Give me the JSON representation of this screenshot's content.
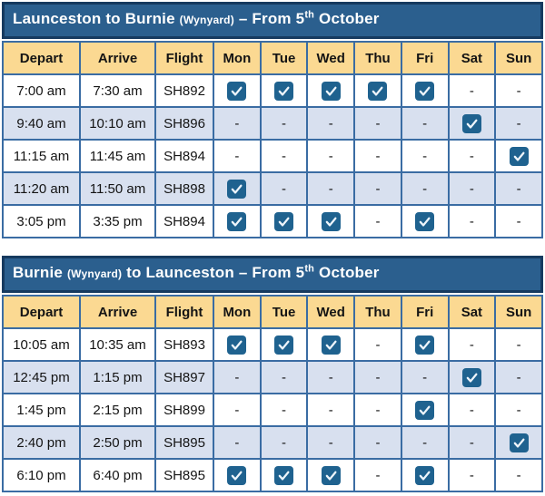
{
  "dash": "-",
  "icons": {
    "check": "check-icon"
  },
  "colors": {
    "title_bar_bg": "#2b5f8e",
    "title_bar_border": "#163a5f",
    "title_text": "#ffffff",
    "header_bg": "#fbd992",
    "grid_border": "#3a6ca3",
    "row_alt_bg": "#d8e0ef",
    "checkbox_bg": "#1f628f",
    "checkbox_mark": "#eef5fb"
  },
  "col_headers": [
    "Depart",
    "Arrive",
    "Flight"
  ],
  "day_headers": [
    "Mon",
    "Tue",
    "Wed",
    "Thu",
    "Fri",
    "Sat",
    "Sun"
  ],
  "tables": [
    {
      "title": {
        "before_paren": "Launceston to Burnie ",
        "paren": "(Wynyard)",
        "after_paren": " – From 5",
        "ordinal": "th",
        "after_ordinal": " October"
      },
      "rows": [
        {
          "depart": "7:00 am",
          "arrive": "7:30 am",
          "flight": "SH892",
          "days": [
            true,
            true,
            true,
            true,
            true,
            false,
            false
          ]
        },
        {
          "depart": "9:40 am",
          "arrive": "10:10 am",
          "flight": "SH896",
          "days": [
            false,
            false,
            false,
            false,
            false,
            true,
            false
          ]
        },
        {
          "depart": "11:15 am",
          "arrive": "11:45 am",
          "flight": "SH894",
          "days": [
            false,
            false,
            false,
            false,
            false,
            false,
            true
          ]
        },
        {
          "depart": "11:20 am",
          "arrive": "11:50 am",
          "flight": "SH898",
          "days": [
            true,
            false,
            false,
            false,
            false,
            false,
            false
          ]
        },
        {
          "depart": "3:05 pm",
          "arrive": "3:35 pm",
          "flight": "SH894",
          "days": [
            true,
            true,
            true,
            false,
            true,
            false,
            false
          ]
        }
      ]
    },
    {
      "title": {
        "before_paren": "Burnie ",
        "paren": "(Wynyard)",
        "after_paren": " to Launceston – From 5",
        "ordinal": "th",
        "after_ordinal": " October"
      },
      "rows": [
        {
          "depart": "10:05 am",
          "arrive": "10:35 am",
          "flight": "SH893",
          "days": [
            true,
            true,
            true,
            false,
            true,
            false,
            false
          ]
        },
        {
          "depart": "12:45 pm",
          "arrive": "1:15 pm",
          "flight": "SH897",
          "days": [
            false,
            false,
            false,
            false,
            false,
            true,
            false
          ]
        },
        {
          "depart": "1:45 pm",
          "arrive": "2:15 pm",
          "flight": "SH899",
          "days": [
            false,
            false,
            false,
            false,
            true,
            false,
            false
          ]
        },
        {
          "depart": "2:40 pm",
          "arrive": "2:50 pm",
          "flight": "SH895",
          "days": [
            false,
            false,
            false,
            false,
            false,
            false,
            true
          ]
        },
        {
          "depart": "6:10 pm",
          "arrive": "6:40 pm",
          "flight": "SH895",
          "days": [
            true,
            true,
            true,
            false,
            true,
            false,
            false
          ]
        }
      ]
    }
  ]
}
